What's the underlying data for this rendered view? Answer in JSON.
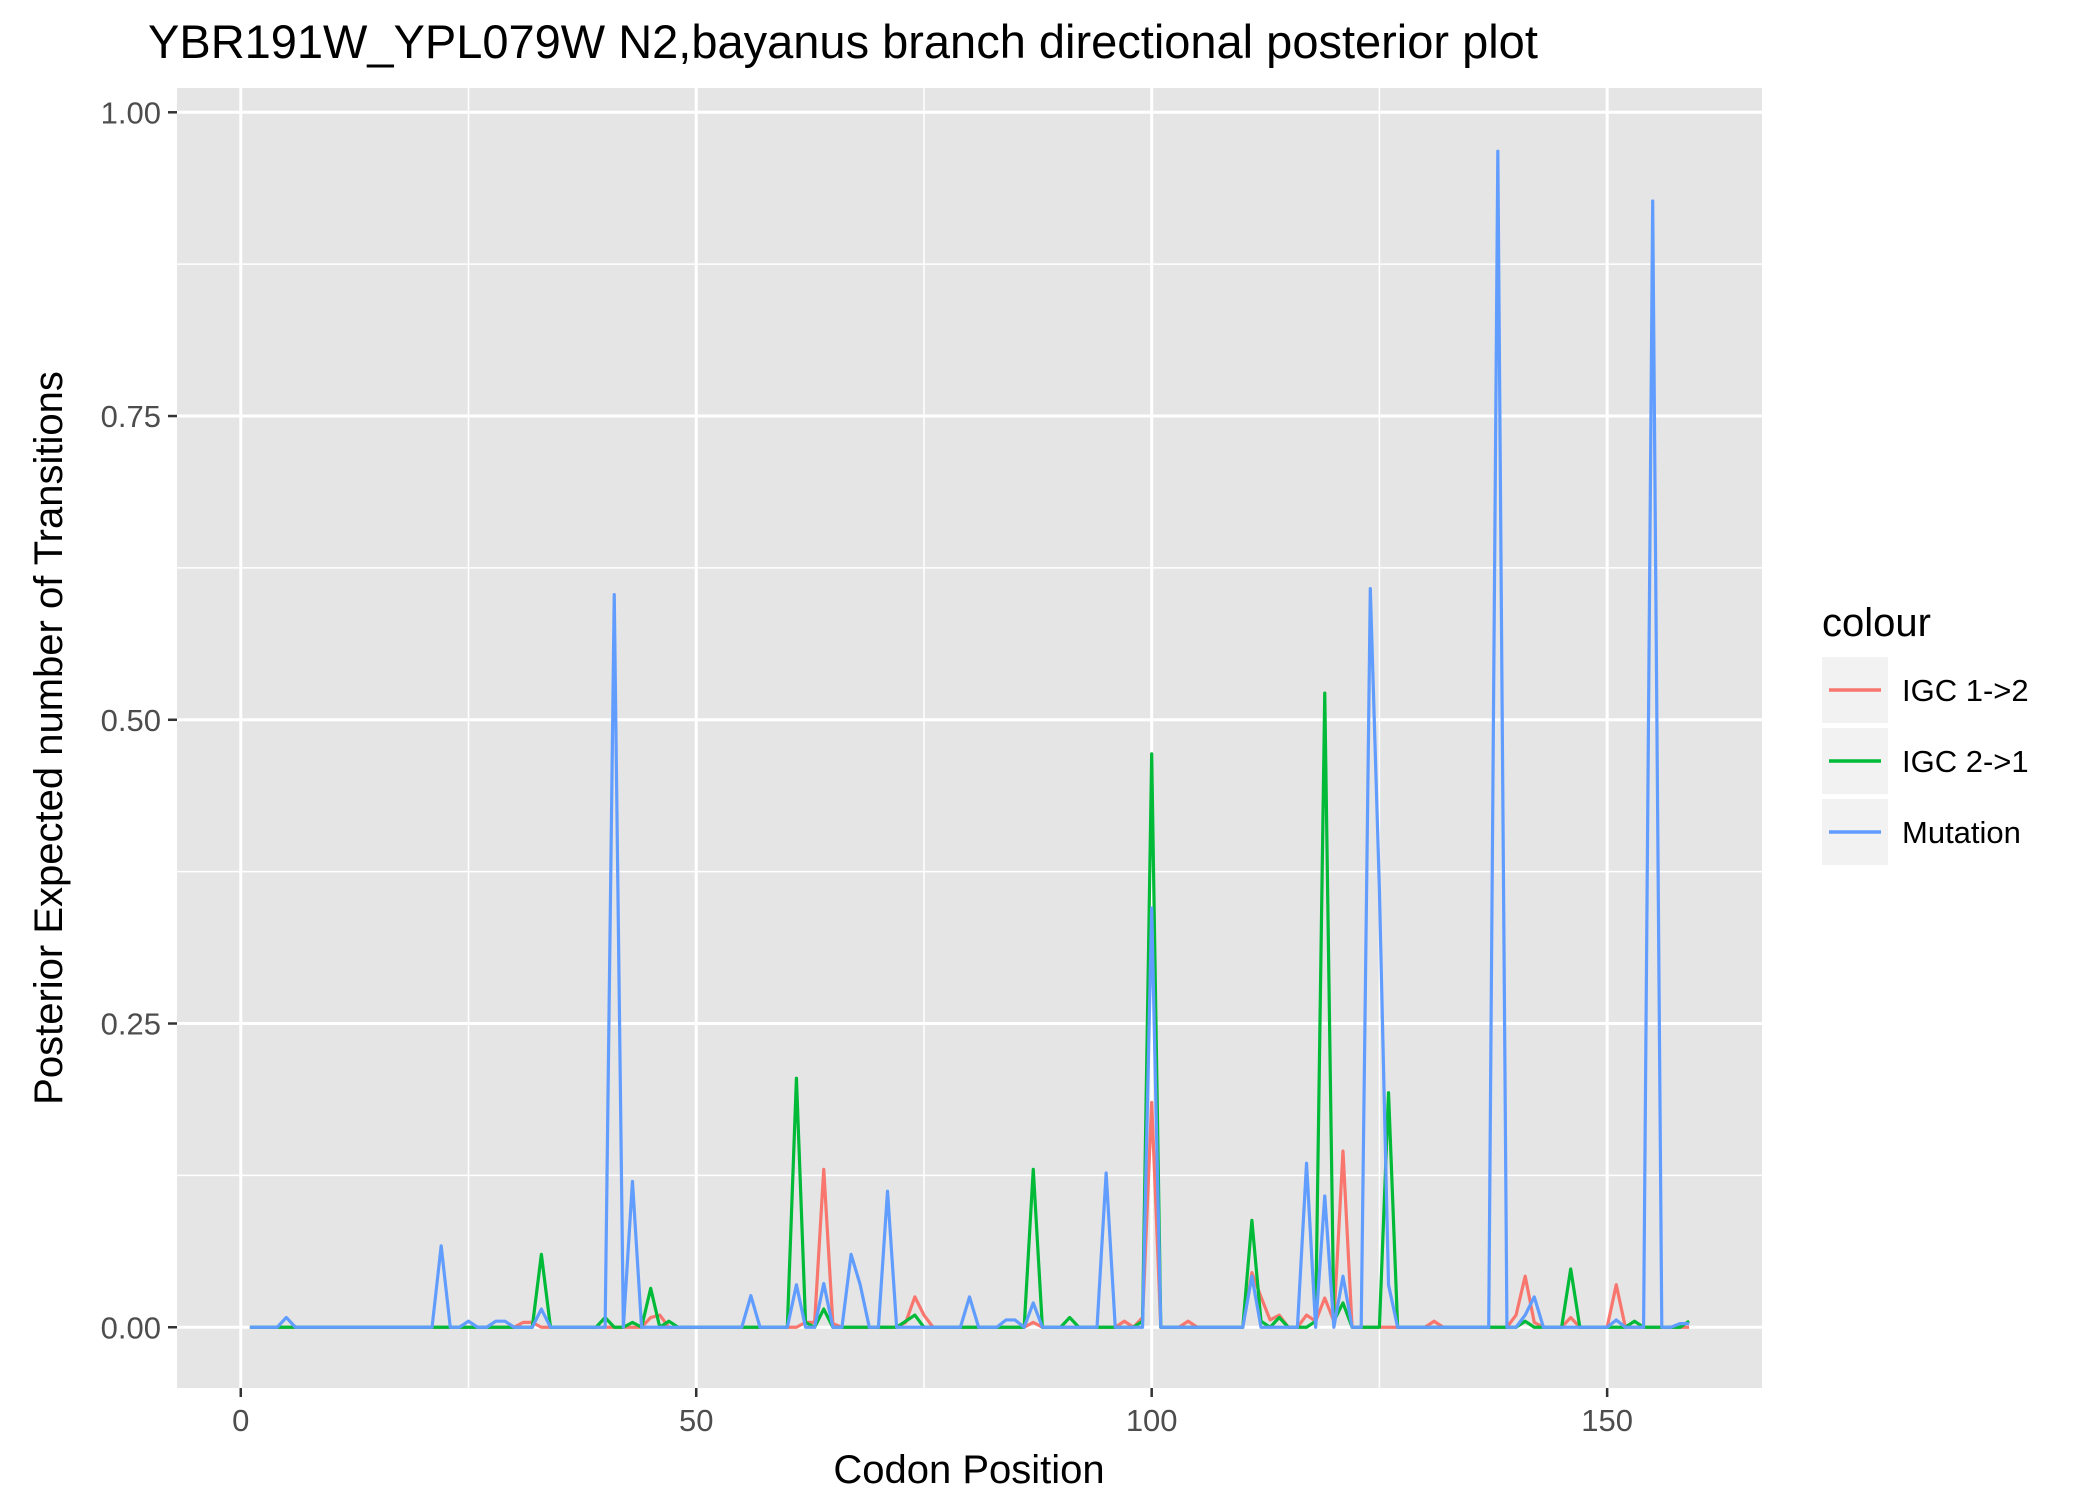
{
  "chart_data": {
    "type": "line",
    "title": "YBR191W_YPL079W N2,bayanus branch directional posterior plot",
    "xlabel": "Codon Position",
    "ylabel": "Posterior Expected number of Transitions",
    "xlim": [
      -7,
      167
    ],
    "ylim": [
      -0.05,
      1.02
    ],
    "x_ticks": [
      0,
      50,
      100,
      150
    ],
    "x_tick_labels": [
      "0",
      "50",
      "100",
      "150"
    ],
    "y_ticks": [
      0,
      0.25,
      0.5,
      0.75,
      1
    ],
    "y_tick_labels": [
      "0.00",
      "0.25",
      "0.50",
      "0.75",
      "1.00"
    ],
    "grid": true,
    "panel_background": "#e5e5e5",
    "grid_color": "#ffffff",
    "legend": {
      "title": "colour",
      "position": "right",
      "entries": [
        "IGC 1->2",
        "IGC 2->1",
        "Mutation"
      ]
    },
    "series": [
      {
        "name": "IGC 1->2",
        "color": "#f8766d",
        "x": [
          1,
          30,
          31,
          32,
          33,
          40,
          44,
          45,
          46,
          47,
          61,
          62,
          63,
          64,
          65,
          66,
          72,
          73,
          74,
          75,
          76,
          86,
          87,
          88,
          96,
          97,
          98,
          99,
          100,
          101,
          103,
          104,
          105,
          110,
          111,
          112,
          113,
          114,
          116,
          117,
          118,
          119,
          120,
          121,
          122,
          130,
          131,
          132,
          139,
          140,
          141,
          142,
          143,
          145,
          146,
          147,
          150,
          151,
          152,
          159
        ],
        "y": [
          0,
          0,
          0.004,
          0.004,
          0,
          0,
          0,
          0.008,
          0.01,
          0,
          0,
          0.004,
          0.004,
          0.13,
          0.003,
          0,
          0,
          0.004,
          0.025,
          0.01,
          0,
          0,
          0.004,
          0,
          0,
          0.005,
          0,
          0.008,
          0.185,
          0,
          0,
          0.005,
          0,
          0,
          0.045,
          0.025,
          0.006,
          0.01,
          0,
          0.01,
          0.005,
          0.024,
          0.005,
          0.145,
          0,
          0,
          0.005,
          0,
          0,
          0.01,
          0.042,
          0.004,
          0,
          0,
          0.008,
          0,
          0,
          0.035,
          0,
          0
        ]
      },
      {
        "name": "IGC 2->1",
        "color": "#00ba38",
        "x": [
          1,
          32,
          33,
          34,
          39,
          40,
          41,
          43,
          44,
          45,
          46,
          47,
          48,
          60,
          61,
          62,
          63,
          64,
          65,
          72,
          73,
          74,
          75,
          86,
          87,
          88,
          90,
          91,
          92,
          98,
          99,
          100,
          101,
          110,
          111,
          112,
          113,
          114,
          115,
          117,
          118,
          119,
          120,
          121,
          122,
          125,
          126,
          127,
          140,
          141,
          142,
          145,
          146,
          147,
          152,
          153,
          154,
          158,
          159
        ],
        "y": [
          0,
          0,
          0.06,
          0,
          0,
          0.008,
          0,
          0.004,
          0,
          0.032,
          0,
          0.005,
          0,
          0,
          0.205,
          0.004,
          0,
          0.015,
          0,
          0,
          0.005,
          0.01,
          0,
          0,
          0.13,
          0,
          0,
          0.008,
          0,
          0,
          0.005,
          0.472,
          0,
          0,
          0.088,
          0.005,
          0,
          0.008,
          0,
          0,
          0.005,
          0.522,
          0.005,
          0.02,
          0,
          0,
          0.193,
          0,
          0,
          0.005,
          0,
          0,
          0.048,
          0,
          0,
          0.005,
          0,
          0,
          0.005
        ]
      },
      {
        "name": "Mutation",
        "color": "#619cff",
        "x": [
          1,
          4,
          5,
          6,
          21,
          22,
          23,
          24,
          25,
          26,
          27,
          28,
          29,
          30,
          32,
          33,
          34,
          40,
          41,
          42,
          43,
          44,
          55,
          56,
          57,
          60,
          61,
          62,
          63,
          64,
          65,
          66,
          67,
          68,
          69,
          70,
          71,
          72,
          79,
          80,
          81,
          83,
          84,
          85,
          86,
          87,
          88,
          94,
          95,
          96,
          99,
          100,
          101,
          110,
          111,
          112,
          116,
          117,
          118,
          119,
          120,
          121,
          122,
          123,
          124,
          125,
          126,
          127,
          137,
          138,
          139,
          141,
          142,
          143,
          144,
          150,
          151,
          152,
          154,
          155,
          156,
          157,
          158,
          159
        ],
        "y": [
          0,
          0,
          0.008,
          0,
          0,
          0.067,
          0,
          0,
          0.005,
          0,
          0,
          0.005,
          0.005,
          0,
          0,
          0.015,
          0,
          0,
          0.603,
          0,
          0.12,
          0,
          0,
          0.026,
          0,
          0,
          0.035,
          0,
          0,
          0.036,
          0,
          0,
          0.06,
          0.035,
          0,
          0,
          0.112,
          0,
          0,
          0.025,
          0,
          0,
          0.006,
          0.006,
          0,
          0.02,
          0,
          0,
          0.127,
          0,
          0,
          0.345,
          0,
          0,
          0.042,
          0,
          0,
          0.135,
          0,
          0.108,
          0,
          0.042,
          0,
          0,
          0.608,
          0.36,
          0.035,
          0,
          0,
          0.968,
          0,
          0.01,
          0.025,
          0,
          0,
          0,
          0.006,
          0,
          0,
          0.927,
          0,
          0,
          0.003,
          0.003
        ]
      }
    ]
  }
}
